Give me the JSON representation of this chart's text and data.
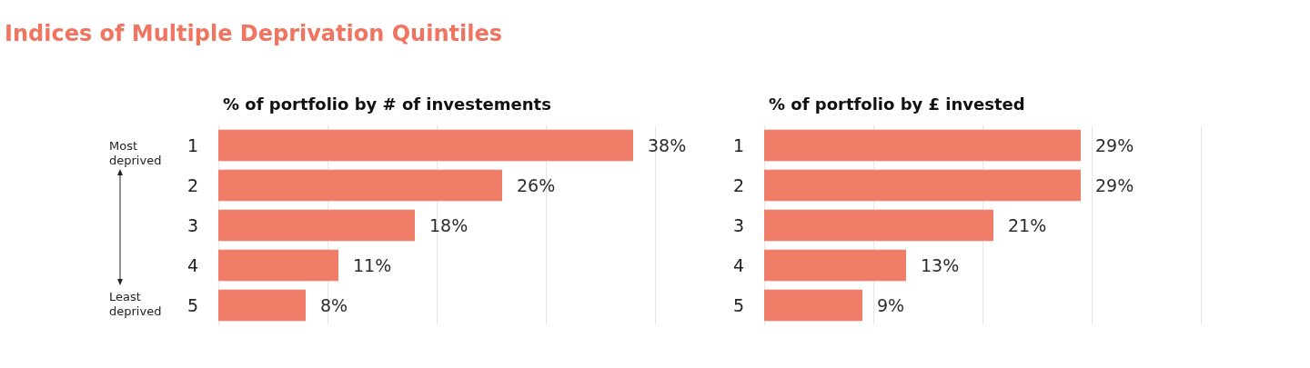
{
  "chart_data": [
    {
      "type": "bar",
      "orientation": "horizontal",
      "title": "Indices of Multiple Deprivation Quintiles",
      "subtitle": "% of portfolio by # of investements",
      "categories": [
        "1",
        "2",
        "3",
        "4",
        "5"
      ],
      "values": [
        38,
        26,
        18,
        11,
        8
      ],
      "value_labels": [
        "38%",
        "26%",
        "18%",
        "11%",
        "8%"
      ],
      "color": "#f07560",
      "xlim": [
        0,
        40
      ],
      "xticks": [
        {
          "value": 0,
          "label": null
        },
        {
          "value": 10,
          "label": null
        },
        {
          "value": 20,
          "label": null
        },
        {
          "value": 30,
          "label": null
        },
        {
          "value": 40,
          "label": null
        }
      ],
      "grid": "x",
      "tick_labels": "y",
      "annotations": [
        "Most deprived",
        "Least deprived"
      ]
    },
    {
      "type": "bar",
      "orientation": "horizontal",
      "title": "% of portfolio by £ invested",
      "categories": [
        "1",
        "2",
        "3",
        "4",
        "5"
      ],
      "values": [
        29,
        29,
        21,
        13,
        9
      ],
      "value_labels": [
        "29%",
        "29%",
        "21%",
        "13%",
        "9%"
      ],
      "color": "#f07560",
      "xlim": [
        0,
        40
      ],
      "xticks": [
        {
          "value": 0,
          "label": null
        },
        {
          "value": 10,
          "label": null
        },
        {
          "value": 20,
          "label": null
        },
        {
          "value": 30,
          "label": null
        },
        {
          "value": 40,
          "label": null
        }
      ],
      "grid": "x",
      "tick_labels": "y"
    }
  ]
}
